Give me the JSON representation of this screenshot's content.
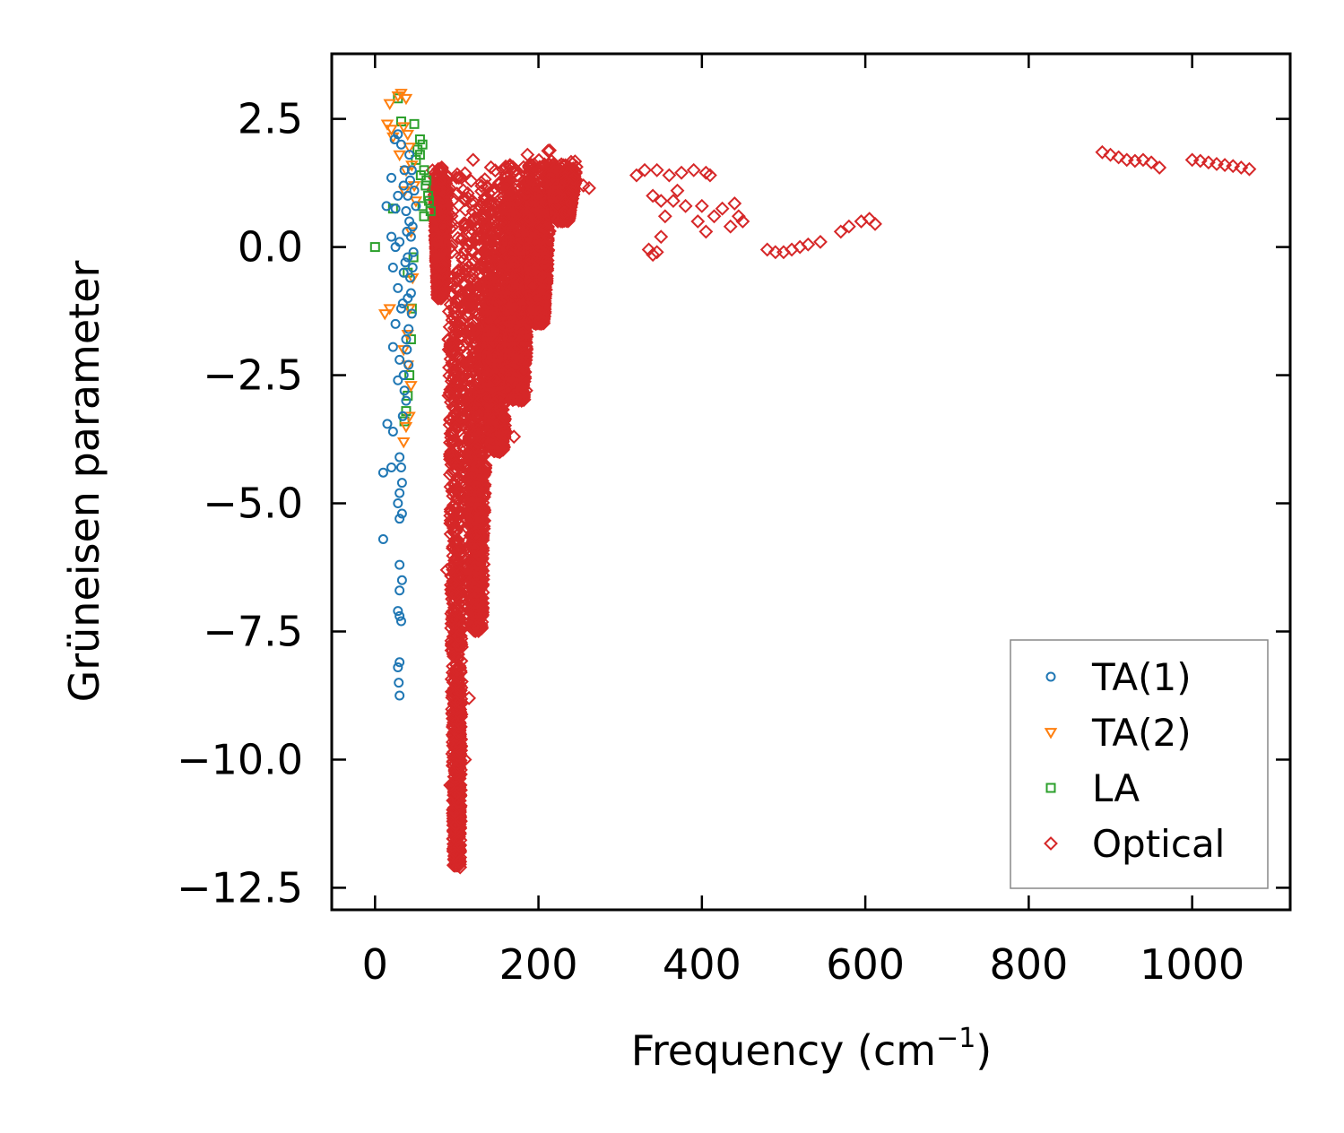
{
  "chart_data": {
    "type": "scatter",
    "title": "",
    "xlabel": "Frequency (cm",
    "xlabel_sup": "−1",
    "xlabel_close": ")",
    "ylabel": "Grüneisen parameter",
    "xlim": [
      -53,
      1120
    ],
    "ylim": [
      -12.93,
      3.77
    ],
    "xticks": [
      0,
      200,
      400,
      600,
      800,
      1000
    ],
    "xtick_labels": [
      "0",
      "200",
      "400",
      "600",
      "800",
      "1000"
    ],
    "yticks": [
      2.5,
      0.0,
      -2.5,
      -5.0,
      -7.5,
      -10.0,
      -12.5
    ],
    "ytick_labels": [
      "2.5",
      "0.0",
      "−2.5",
      "−5.0",
      "−7.5",
      "−10.0",
      "−12.5"
    ],
    "grid": false,
    "legend_position": "lower-right",
    "series": [
      {
        "name": "TA(1)",
        "marker": "circle",
        "color": "#1f77b4",
        "points": [
          [
            28,
            2.2
          ],
          [
            24,
            2.1
          ],
          [
            32,
            2.0
          ],
          [
            20,
            1.35
          ],
          [
            35,
            1.2
          ],
          [
            28,
            1.0
          ],
          [
            25,
            0.75
          ],
          [
            14,
            0.8
          ],
          [
            38,
            0.7
          ],
          [
            20,
            0.2
          ],
          [
            30,
            0.1
          ],
          [
            25,
            0.0
          ],
          [
            40,
            -0.2
          ],
          [
            22,
            -0.4
          ],
          [
            35,
            -0.5
          ],
          [
            28,
            -0.8
          ],
          [
            40,
            -1.0
          ],
          [
            32,
            -1.2
          ],
          [
            25,
            -1.5
          ],
          [
            38,
            -1.8
          ],
          [
            22,
            -1.95
          ],
          [
            30,
            -2.2
          ],
          [
            35,
            -2.5
          ],
          [
            28,
            -2.6
          ],
          [
            15,
            -3.45
          ],
          [
            22,
            -3.6
          ],
          [
            30,
            -4.1
          ],
          [
            32,
            -4.3
          ],
          [
            10,
            -4.4
          ],
          [
            20,
            -4.3
          ],
          [
            33,
            -4.6
          ],
          [
            30,
            -4.8
          ],
          [
            28,
            -5.0
          ],
          [
            33,
            -5.2
          ],
          [
            30,
            -5.3
          ],
          [
            10,
            -5.7
          ],
          [
            30,
            -6.2
          ],
          [
            33,
            -6.5
          ],
          [
            30,
            -6.7
          ],
          [
            28,
            -7.1
          ],
          [
            30,
            -7.2
          ],
          [
            32,
            -7.3
          ],
          [
            30,
            -8.1
          ],
          [
            28,
            -8.2
          ],
          [
            29,
            -8.5
          ],
          [
            30,
            -8.75
          ],
          [
            42,
            1.8
          ],
          [
            45,
            1.5
          ],
          [
            48,
            1.1
          ],
          [
            50,
            0.8
          ],
          [
            46,
            0.4
          ],
          [
            44,
            0.2
          ],
          [
            47,
            -0.1
          ],
          [
            43,
            -0.6
          ],
          [
            45,
            -1.3
          ],
          [
            41,
            -1.6
          ],
          [
            39,
            -2.0
          ],
          [
            44,
            -0.9
          ],
          [
            42,
            0.5
          ],
          [
            40,
            1.0
          ],
          [
            36,
            1.5
          ],
          [
            34,
            -1.1
          ],
          [
            37,
            -0.3
          ],
          [
            43,
            1.3
          ],
          [
            46,
            -0.4
          ],
          [
            39,
            0.3
          ],
          [
            41,
            -2.3
          ],
          [
            36,
            -2.8
          ],
          [
            38,
            -3.0
          ],
          [
            34,
            -3.3
          ]
        ]
      },
      {
        "name": "TA(2)",
        "marker": "triangle-down",
        "color": "#ff7f0e",
        "points": [
          [
            28,
            2.95
          ],
          [
            32,
            3.0
          ],
          [
            38,
            2.9
          ],
          [
            18,
            2.8
          ],
          [
            15,
            2.4
          ],
          [
            20,
            2.3
          ],
          [
            35,
            2.35
          ],
          [
            40,
            2.2
          ],
          [
            22,
            2.15
          ],
          [
            42,
            1.95
          ],
          [
            30,
            1.8
          ],
          [
            45,
            1.6
          ],
          [
            38,
            1.5
          ],
          [
            12,
            -1.3
          ],
          [
            18,
            -1.2
          ],
          [
            42,
            -1.2
          ],
          [
            35,
            -2.0
          ],
          [
            40,
            -2.3
          ],
          [
            42,
            -3.3
          ],
          [
            38,
            -3.5
          ],
          [
            35,
            -3.8
          ],
          [
            48,
            1.2
          ],
          [
            50,
            0.9
          ],
          [
            44,
            0.3
          ],
          [
            46,
            -0.6
          ],
          [
            40,
            -1.7
          ],
          [
            44,
            -2.7
          ],
          [
            36,
            1.1
          ]
        ]
      },
      {
        "name": "LA",
        "marker": "square",
        "color": "#2ca02c",
        "points": [
          [
            28,
            2.9
          ],
          [
            32,
            2.45
          ],
          [
            48,
            2.4
          ],
          [
            55,
            2.1
          ],
          [
            58,
            2.0
          ],
          [
            55,
            1.8
          ],
          [
            50,
            1.7
          ],
          [
            60,
            1.5
          ],
          [
            62,
            1.2
          ],
          [
            65,
            1.0
          ],
          [
            58,
            0.8
          ],
          [
            68,
            0.7
          ],
          [
            22,
            0.75
          ],
          [
            0,
            0.0
          ],
          [
            40,
            -0.5
          ],
          [
            45,
            -1.2
          ],
          [
            42,
            -2.5
          ],
          [
            40,
            -2.9
          ],
          [
            38,
            -3.2
          ],
          [
            36,
            -3.4
          ],
          [
            63,
            1.3
          ],
          [
            66,
            0.9
          ],
          [
            52,
            1.9
          ],
          [
            56,
            1.4
          ],
          [
            60,
            0.6
          ],
          [
            47,
            -0.2
          ],
          [
            44,
            -1.8
          ]
        ]
      },
      {
        "name": "Optical",
        "marker": "diamond",
        "color": "#d62728",
        "clusters": [
          {
            "x": 100,
            "y_top": 1.5,
            "y_bot": -12.1,
            "spread": 12
          },
          {
            "x": 125,
            "y_top": 1.6,
            "y_bot": -7.5,
            "spread": 18
          },
          {
            "x": 150,
            "y_top": 1.7,
            "y_bot": -4.0,
            "spread": 22
          },
          {
            "x": 175,
            "y_top": 1.8,
            "y_bot": -3.0,
            "spread": 22
          },
          {
            "x": 200,
            "y_top": 1.9,
            "y_bot": -1.5,
            "spread": 20
          },
          {
            "x": 230,
            "y_top": 1.7,
            "y_bot": 0.5,
            "spread": 20
          },
          {
            "x": 80,
            "y_top": 1.6,
            "y_bot": -1.0,
            "spread": 10
          }
        ],
        "points": [
          [
            255,
            1.2
          ],
          [
            262,
            1.15
          ],
          [
            120,
            1.7
          ],
          [
            90,
            -2.9
          ],
          [
            88,
            -6.3
          ],
          [
            95,
            -9.2
          ],
          [
            92,
            -10.5
          ],
          [
            105,
            -11.2
          ],
          [
            115,
            -8.8
          ],
          [
            110,
            -10.0
          ],
          [
            170,
            -3.7
          ],
          [
            160,
            -3.6
          ],
          [
            185,
            -2.8
          ],
          [
            320,
            1.4
          ],
          [
            330,
            1.5
          ],
          [
            345,
            1.5
          ],
          [
            360,
            1.4
          ],
          [
            375,
            1.45
          ],
          [
            390,
            1.5
          ],
          [
            405,
            1.45
          ],
          [
            410,
            1.4
          ],
          [
            340,
            1.0
          ],
          [
            350,
            0.9
          ],
          [
            355,
            0.6
          ],
          [
            350,
            0.2
          ],
          [
            345,
            -0.1
          ],
          [
            340,
            -0.15
          ],
          [
            335,
            -0.05
          ],
          [
            365,
            0.9
          ],
          [
            370,
            1.1
          ],
          [
            380,
            0.8
          ],
          [
            395,
            0.5
          ],
          [
            400,
            0.8
          ],
          [
            405,
            0.3
          ],
          [
            415,
            0.6
          ],
          [
            425,
            0.75
          ],
          [
            440,
            0.85
          ],
          [
            445,
            0.6
          ],
          [
            435,
            0.4
          ],
          [
            450,
            0.5
          ],
          [
            480,
            -0.05
          ],
          [
            490,
            -0.1
          ],
          [
            500,
            -0.1
          ],
          [
            510,
            -0.05
          ],
          [
            520,
            0.0
          ],
          [
            530,
            0.05
          ],
          [
            545,
            0.1
          ],
          [
            570,
            0.3
          ],
          [
            580,
            0.4
          ],
          [
            595,
            0.5
          ],
          [
            605,
            0.55
          ],
          [
            612,
            0.45
          ],
          [
            890,
            1.85
          ],
          [
            900,
            1.8
          ],
          [
            910,
            1.75
          ],
          [
            920,
            1.7
          ],
          [
            930,
            1.68
          ],
          [
            940,
            1.7
          ],
          [
            950,
            1.65
          ],
          [
            960,
            1.55
          ],
          [
            1000,
            1.7
          ],
          [
            1010,
            1.68
          ],
          [
            1020,
            1.65
          ],
          [
            1030,
            1.62
          ],
          [
            1040,
            1.6
          ],
          [
            1050,
            1.58
          ],
          [
            1060,
            1.55
          ],
          [
            1070,
            1.52
          ]
        ]
      }
    ]
  }
}
